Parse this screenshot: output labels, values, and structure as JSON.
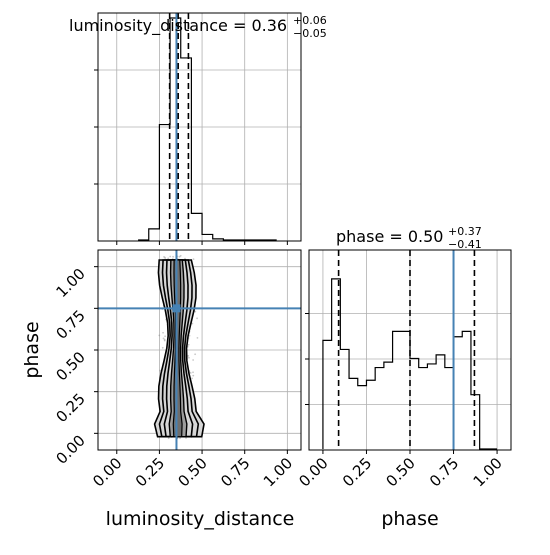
{
  "chart_data": [
    {
      "type": "histogram",
      "title": {
        "main": "luminosity_distance = 0.36",
        "plus": "+0.06",
        "minus": "−0.05"
      },
      "xlim": [
        -0.11,
        1.08
      ],
      "ylim": [
        0,
        1
      ],
      "bins": {
        "start": 0.125,
        "width": 0.0625
      },
      "values": [
        0,
        0.05,
        0.52,
        1.0,
        0.82,
        0.12,
        0.025,
        0.005,
        0,
        0,
        0,
        0,
        0
      ],
      "quantiles": [
        0.31,
        0.36,
        0.42
      ],
      "truth": 0.35,
      "grid": true
    },
    {
      "type": "scatter",
      "xlabel": "luminosity_distance",
      "ylabel": "phase",
      "xlim": [
        -0.11,
        1.08
      ],
      "ylim": [
        -0.1,
        1.1
      ],
      "xticks": [
        "0.00",
        "0.25",
        "0.50",
        "0.75",
        "1.00"
      ],
      "yticks": [
        "0.00",
        "0.25",
        "0.50",
        "0.75",
        "1.00"
      ],
      "truth": {
        "x": 0.35,
        "y": 0.75
      },
      "grid": true
    },
    {
      "type": "histogram",
      "title": {
        "main": "phase = 0.50",
        "plus": "+0.37",
        "minus": "−0.41"
      },
      "xlabel": "phase",
      "xlim": [
        -0.08,
        1.08
      ],
      "ylim": [
        0,
        1
      ],
      "xticks": [
        "0.00",
        "0.25",
        "0.50",
        "0.75",
        "1.00"
      ],
      "bins": {
        "start": 0.0,
        "width": 0.05
      },
      "values": [
        0.6,
        0.94,
        0.55,
        0.39,
        0.35,
        0.38,
        0.45,
        0.48,
        0.65,
        0.65,
        0.5,
        0.45,
        0.47,
        0.52,
        0.45,
        0.62,
        0.65,
        0.3,
        0,
        0
      ],
      "quantiles": [
        0.09,
        0.5,
        0.87
      ],
      "truth": 0.75,
      "grid": true
    }
  ],
  "colors": {
    "truth": "#4682b4",
    "line": "#000000",
    "grid": "#b0b0b0",
    "points": "#888888",
    "contour_fill": "#d6d6d6"
  }
}
